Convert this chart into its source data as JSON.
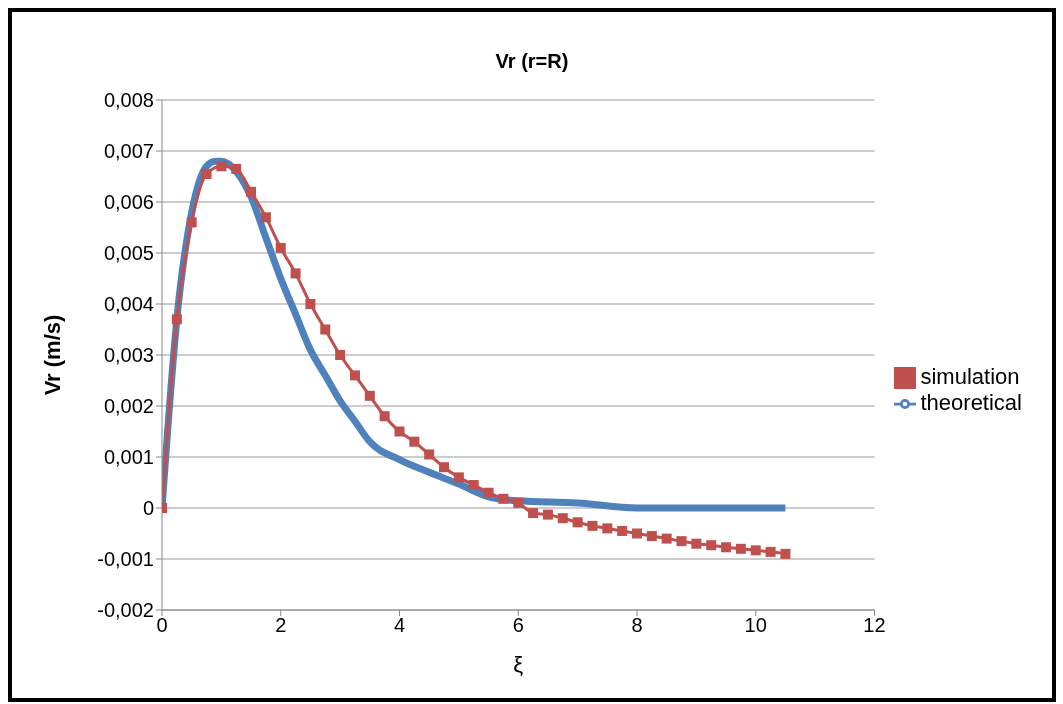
{
  "chart_data": {
    "type": "line",
    "title": "Vr (r=R)",
    "xlabel": "ξ",
    "ylabel": "Vr (m/s)",
    "xlim": [
      0,
      12
    ],
    "xticks": [
      0,
      2,
      4,
      6,
      8,
      10,
      12
    ],
    "ylim": [
      -0.002,
      0.008
    ],
    "yticks": [
      {
        "value": -0.002,
        "label": "-0,002"
      },
      {
        "value": -0.001,
        "label": "-0,001"
      },
      0,
      {
        "value": 0.001,
        "label": "0,001"
      },
      {
        "value": 0.002,
        "label": "0,002"
      },
      {
        "value": 0.003,
        "label": "0,003"
      },
      {
        "value": 0.004,
        "label": "0,004"
      },
      {
        "value": 0.005,
        "label": "0,005"
      },
      {
        "value": 0.006,
        "label": "0,006"
      },
      {
        "value": 0.007,
        "label": "0,007"
      },
      {
        "value": 0.008,
        "label": "0,008"
      }
    ],
    "grid": "y",
    "legend": "right",
    "line_style": "solid",
    "series": [
      {
        "name": "theoretical",
        "color": "#4f81bd",
        "marker": "none",
        "x": [
          0,
          0.1,
          0.25,
          0.5,
          0.75,
          0.9,
          1.0,
          1.25,
          1.5,
          1.75,
          2.0,
          2.25,
          2.5,
          2.75,
          3.0,
          3.25,
          3.5,
          4.0,
          4.5,
          5.0,
          5.5,
          6.0,
          7.0,
          8.0,
          9.0,
          10.0,
          10.5
        ],
        "values": [
          0,
          0.0016,
          0.0037,
          0.0058,
          0.0067,
          0.0068,
          0.0068,
          0.0066,
          0.0061,
          0.0053,
          0.0045,
          0.0038,
          0.0031,
          0.0026,
          0.0021,
          0.0017,
          0.0013,
          0.00095,
          0.0007,
          0.00047,
          0.00022,
          0.00014,
          0.0001,
          0,
          0,
          0,
          0
        ]
      },
      {
        "name": "simulation",
        "color": "#c0504d",
        "marker": "square",
        "x": [
          0,
          0.25,
          0.5,
          0.75,
          1.0,
          1.25,
          1.5,
          1.75,
          2.0,
          2.25,
          2.5,
          2.75,
          3.0,
          3.25,
          3.5,
          3.75,
          4.0,
          4.25,
          4.5,
          4.75,
          5.0,
          5.25,
          5.5,
          5.75,
          6.0,
          6.25,
          6.5,
          6.75,
          7.0,
          7.25,
          7.5,
          7.75,
          8.0,
          8.25,
          8.5,
          8.75,
          9.0,
          9.25,
          9.5,
          9.75,
          10.0,
          10.25,
          10.5
        ],
        "values": [
          0,
          0.0037,
          0.0056,
          0.00655,
          0.0067,
          0.00665,
          0.0062,
          0.0057,
          0.0051,
          0.0046,
          0.004,
          0.0035,
          0.003,
          0.0026,
          0.0022,
          0.0018,
          0.0015,
          0.0013,
          0.00105,
          0.0008,
          0.0006,
          0.00045,
          0.0003,
          0.00018,
          0.0001,
          -0.0001,
          -0.00013,
          -0.0002,
          -0.00028,
          -0.00035,
          -0.0004,
          -0.00045,
          -0.0005,
          -0.00055,
          -0.0006,
          -0.00065,
          -0.0007,
          -0.00073,
          -0.00077,
          -0.0008,
          -0.00083,
          -0.00086,
          -0.0009
        ]
      }
    ]
  }
}
